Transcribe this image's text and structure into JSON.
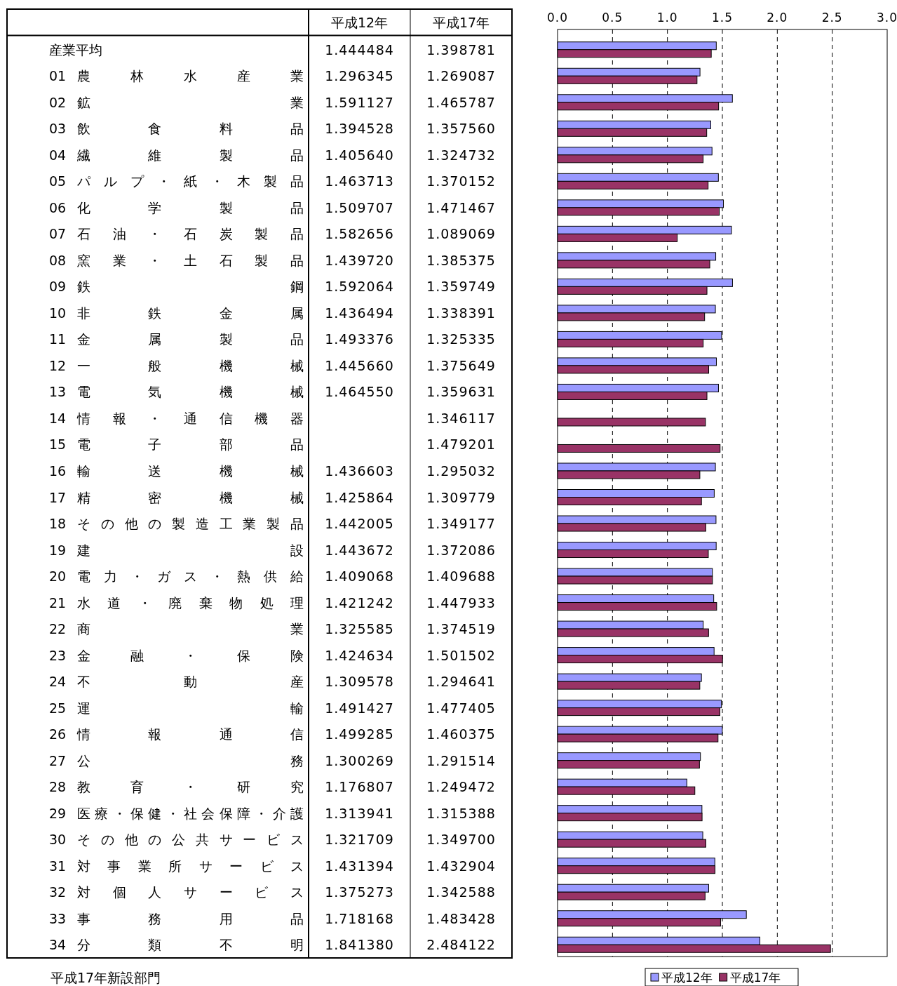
{
  "chart_data": {
    "type": "bar",
    "orientation": "horizontal",
    "categories": [
      "産業平均",
      "01 農林水産業",
      "02 鉱業",
      "03 飲食料品",
      "04 繊維製品",
      "05 パルプ・紙・木製品",
      "06 化学製品",
      "07 石油・石炭製品",
      "08 窯業・土石製品",
      "09 鉄鋼",
      "10 非鉄金属",
      "11 金属製品",
      "12 一般機械",
      "13 電気機械",
      "14 情報・通信機器",
      "15 電子部品",
      "16 輸送機械",
      "17 精密機械",
      "18 その他の製造工業製品",
      "19 建設",
      "20 電力・ガス・熱供給",
      "21 水道・廃棄物処理",
      "22 商業",
      "23 金融・保険",
      "24 不動産",
      "25 運輸",
      "26 情報通信",
      "27 公務",
      "28 教育・研究",
      "29 医療・保健・社会保障・介護",
      "30 その他の公共サービス",
      "31 対事業所サービス",
      "32 対個人サービス",
      "33 事務用品",
      "34 分類不明"
    ],
    "series": [
      {
        "name": "平成12年",
        "color": "#9999ff",
        "values": [
          1.444484,
          1.296345,
          1.591127,
          1.394528,
          1.40564,
          1.463713,
          1.509707,
          1.582656,
          1.43972,
          1.592064,
          1.436494,
          1.493376,
          1.44566,
          1.46455,
          null,
          null,
          1.436603,
          1.425864,
          1.442005,
          1.443672,
          1.409068,
          1.421242,
          1.325585,
          1.424634,
          1.309578,
          1.491427,
          1.499285,
          1.300269,
          1.176807,
          1.313941,
          1.321709,
          1.431394,
          1.375273,
          1.718168,
          1.84138
        ],
        "value_labels": [
          "1.444484",
          "1.296345",
          "1.591127",
          "1.394528",
          "1.405640",
          "1.463713",
          "1.509707",
          "1.582656",
          "1.439720",
          "1.592064",
          "1.436494",
          "1.493376",
          "1.445660",
          "1.464550",
          null,
          null,
          "1.436603",
          "1.425864",
          "1.442005",
          "1.443672",
          "1.409068",
          "1.421242",
          "1.325585",
          "1.424634",
          "1.309578",
          "1.491427",
          "1.499285",
          "1.300269",
          "1.176807",
          "1.313941",
          "1.321709",
          "1.431394",
          "1.375273",
          "1.718168",
          "1.841380"
        ]
      },
      {
        "name": "平成17年",
        "color": "#993366",
        "values": [
          1.398781,
          1.269087,
          1.465787,
          1.35756,
          1.324732,
          1.370152,
          1.471467,
          1.089069,
          1.385375,
          1.359749,
          1.338391,
          1.325335,
          1.375649,
          1.359631,
          1.346117,
          1.479201,
          1.295032,
          1.309779,
          1.349177,
          1.372086,
          1.409688,
          1.447933,
          1.374519,
          1.501502,
          1.294641,
          1.477405,
          1.460375,
          1.291514,
          1.249472,
          1.315388,
          1.3497,
          1.432904,
          1.342588,
          1.483428,
          2.484122
        ],
        "value_labels": [
          "1.398781",
          "1.269087",
          "1.465787",
          "1.357560",
          "1.324732",
          "1.370152",
          "1.471467",
          "1.089069",
          "1.385375",
          "1.359749",
          "1.338391",
          "1.325335",
          "1.375649",
          "1.359631",
          "1.346117",
          "1.479201",
          "1.295032",
          "1.309779",
          "1.349177",
          "1.372086",
          "1.409688",
          "1.447933",
          "1.374519",
          "1.501502",
          "1.294641",
          "1.477405",
          "1.460375",
          "1.291514",
          "1.249472",
          "1.315388",
          "1.349700",
          "1.432904",
          "1.342588",
          "1.483428",
          "2.484122"
        ]
      }
    ],
    "xlim": [
      0,
      3
    ],
    "xticks": [
      "0.0",
      "0.5",
      "1.0",
      "1.5",
      "2.0",
      "2.5",
      "3.0"
    ],
    "grid": "x",
    "legend": "bottom",
    "annotations": [
      "平成17年新設部門"
    ]
  }
}
